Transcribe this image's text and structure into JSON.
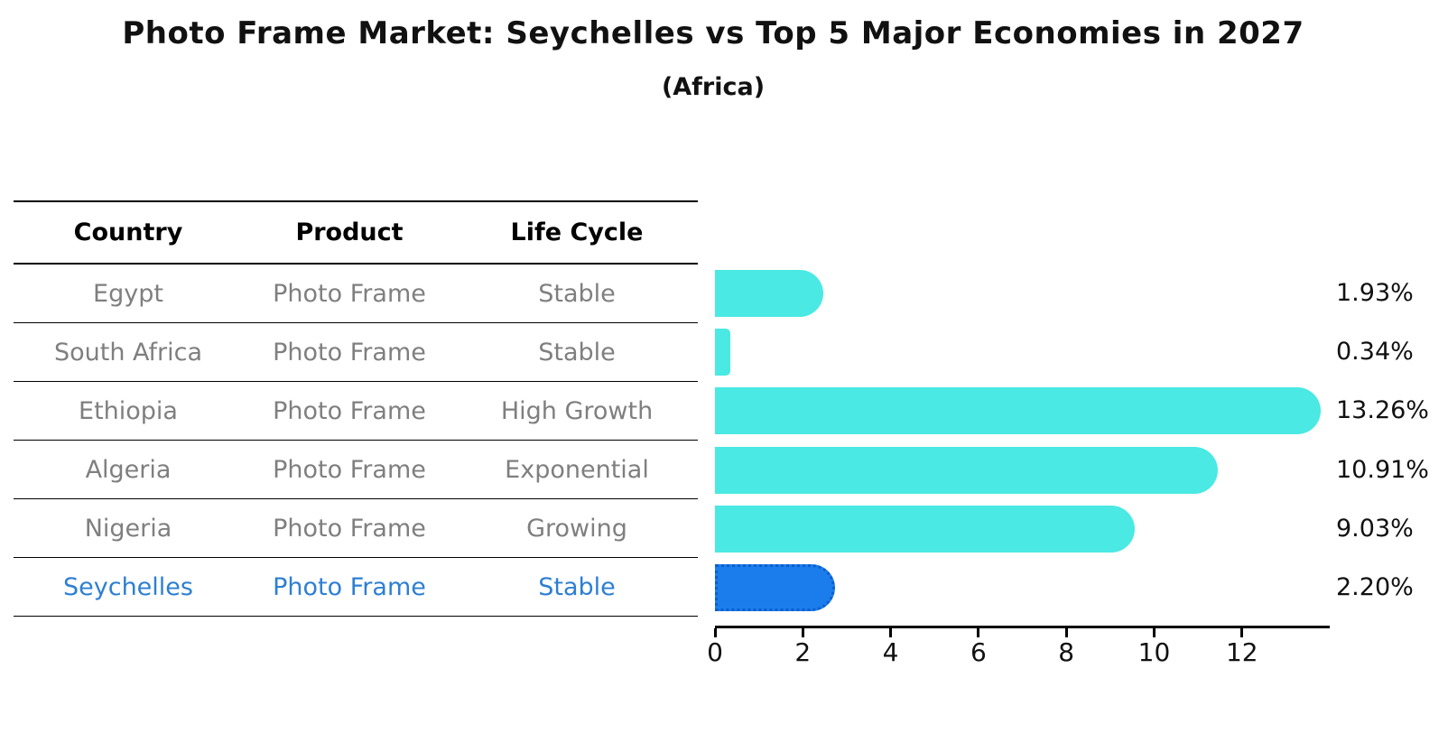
{
  "title": "Photo Frame Market: Seychelles vs Top 5 Major Economies in 2027",
  "subtitle": "(Africa)",
  "table": {
    "headers": [
      "Country",
      "Product",
      "Life Cycle"
    ],
    "rows": [
      {
        "country": "Egypt",
        "product": "Photo Frame",
        "life_cycle": "Stable",
        "highlight": false
      },
      {
        "country": "South Africa",
        "product": "Photo Frame",
        "life_cycle": "Stable",
        "highlight": false
      },
      {
        "country": "Ethiopia",
        "product": "Photo Frame",
        "life_cycle": "High Growth",
        "highlight": false
      },
      {
        "country": "Algeria",
        "product": "Photo Frame",
        "life_cycle": "Exponential",
        "highlight": false
      },
      {
        "country": "Nigeria",
        "product": "Photo Frame",
        "life_cycle": "Growing",
        "highlight": false
      },
      {
        "country": "Seychelles",
        "product": "Photo Frame",
        "life_cycle": "Stable",
        "highlight": true
      }
    ]
  },
  "chart_data": {
    "type": "bar",
    "orientation": "horizontal",
    "title": "Photo Frame Market: Seychelles vs Top 5 Major Economies in 2027",
    "subtitle": "(Africa)",
    "categories": [
      "Egypt",
      "South Africa",
      "Ethiopia",
      "Algeria",
      "Nigeria",
      "Seychelles"
    ],
    "values": [
      1.93,
      0.34,
      13.26,
      10.91,
      9.03,
      2.2
    ],
    "value_labels": [
      "1.93%",
      "0.34%",
      "13.26%",
      "10.91%",
      "9.03%",
      "2.20%"
    ],
    "x_ticks": [
      0,
      2,
      4,
      6,
      8,
      10,
      12
    ],
    "xlim": [
      0,
      14
    ],
    "xlabel": "",
    "ylabel": "",
    "grid": false,
    "legend": "none",
    "bar_color": "#4AE9E3",
    "highlight_color": "#1B7DEB",
    "highlight_border_color": "#0b5fd0",
    "highlight_index": 5,
    "highlight_category": "Seychelles"
  },
  "colors": {
    "background": "#ffffff",
    "table_text": "#7f7f7f",
    "header_text": "#000000",
    "highlight_text": "#2d7fd3",
    "axis": "#000000"
  }
}
